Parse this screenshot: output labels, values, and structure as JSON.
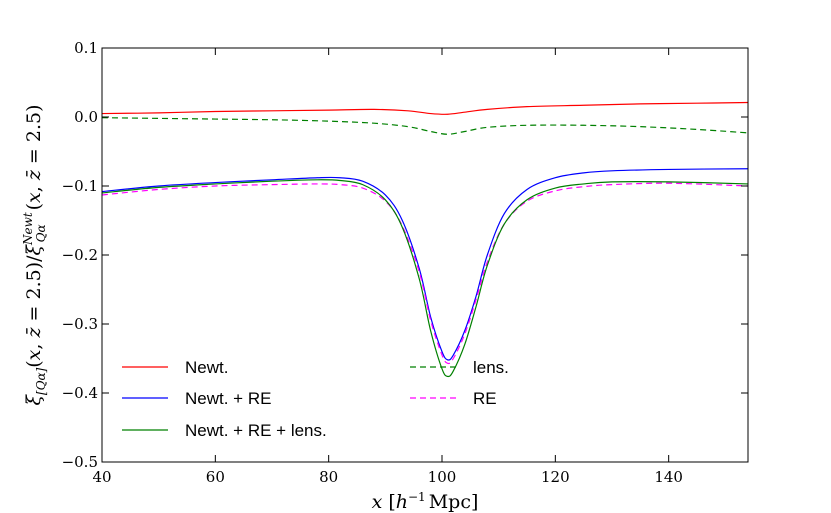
{
  "chart_data": {
    "type": "line",
    "title": "",
    "xlabel": "x [h^{-1} Mpc]",
    "ylabel": "ξ_[Qα](x, z̄ = 2.5)/ξ^Newt_Qα(x, z̄ = 2.5)",
    "xlim": [
      40,
      154
    ],
    "ylim": [
      -0.5,
      0.1
    ],
    "xticks": [
      40,
      60,
      80,
      100,
      120,
      140
    ],
    "yticks": [
      -0.5,
      -0.4,
      -0.3,
      -0.2,
      -0.1,
      0.0,
      0.1
    ],
    "xtick_labels": [
      "40",
      "60",
      "80",
      "100",
      "120",
      "140"
    ],
    "ytick_labels": [
      "−0.5",
      "−0.4",
      "−0.3",
      "−0.2",
      "−0.1",
      "0.0",
      "0.1"
    ],
    "legend_position": "lower-left",
    "series": [
      {
        "name": "Newt.",
        "color": "#ff0000",
        "dash": "solid",
        "x": [
          40,
          50,
          60,
          70,
          80,
          88,
          94,
          98,
          101,
          104,
          108,
          115,
          125,
          135,
          145,
          154
        ],
        "y": [
          0.005,
          0.006,
          0.008,
          0.009,
          0.01,
          0.011,
          0.009,
          0.005,
          0.004,
          0.007,
          0.011,
          0.015,
          0.017,
          0.019,
          0.02,
          0.021
        ]
      },
      {
        "name": "lens.",
        "color": "#008000",
        "dash": "dashed",
        "x": [
          40,
          50,
          60,
          70,
          80,
          88,
          94,
          98,
          101,
          104,
          108,
          115,
          125,
          135,
          145,
          154
        ],
        "y": [
          -0.001,
          -0.002,
          -0.003,
          -0.004,
          -0.006,
          -0.009,
          -0.014,
          -0.021,
          -0.025,
          -0.021,
          -0.015,
          -0.012,
          -0.012,
          -0.014,
          -0.018,
          -0.023
        ]
      },
      {
        "name": "Newt. + RE",
        "color": "#0000ff",
        "dash": "solid",
        "x": [
          40,
          50,
          60,
          70,
          78,
          82,
          86,
          90,
          93,
          96,
          98,
          100,
          101,
          102,
          104,
          106,
          108,
          111,
          115,
          120,
          125,
          130,
          140,
          154
        ],
        "y": [
          -0.108,
          -0.1,
          -0.095,
          -0.091,
          -0.088,
          -0.088,
          -0.093,
          -0.113,
          -0.15,
          -0.22,
          -0.29,
          -0.34,
          -0.352,
          -0.345,
          -0.31,
          -0.26,
          -0.2,
          -0.14,
          -0.105,
          -0.088,
          -0.081,
          -0.078,
          -0.076,
          -0.075
        ]
      },
      {
        "name": "Newt. + RE + lens.",
        "color": "#008000",
        "dash": "solid",
        "x": [
          40,
          50,
          60,
          70,
          78,
          82,
          86,
          90,
          93,
          96,
          98,
          100,
          101,
          102,
          104,
          106,
          108,
          111,
          115,
          120,
          125,
          130,
          140,
          154
        ],
        "y": [
          -0.11,
          -0.102,
          -0.097,
          -0.093,
          -0.091,
          -0.092,
          -0.098,
          -0.12,
          -0.16,
          -0.235,
          -0.31,
          -0.365,
          -0.376,
          -0.368,
          -0.33,
          -0.275,
          -0.215,
          -0.155,
          -0.12,
          -0.103,
          -0.097,
          -0.094,
          -0.094,
          -0.097
        ]
      },
      {
        "name": "RE",
        "color": "#ff00ff",
        "dash": "dashed",
        "x": [
          40,
          50,
          60,
          70,
          78,
          82,
          86,
          90,
          93,
          96,
          98,
          100,
          101,
          102,
          104,
          106,
          108,
          111,
          115,
          120,
          125,
          130,
          140,
          154
        ],
        "y": [
          -0.113,
          -0.105,
          -0.1,
          -0.098,
          -0.097,
          -0.098,
          -0.103,
          -0.122,
          -0.158,
          -0.225,
          -0.295,
          -0.345,
          -0.357,
          -0.35,
          -0.315,
          -0.265,
          -0.21,
          -0.155,
          -0.122,
          -0.107,
          -0.101,
          -0.098,
          -0.096,
          -0.1
        ]
      }
    ],
    "legend_layout": [
      [
        "Newt.",
        "lens."
      ],
      [
        "Newt. + RE",
        "RE"
      ],
      [
        "Newt. + RE + lens."
      ]
    ]
  }
}
